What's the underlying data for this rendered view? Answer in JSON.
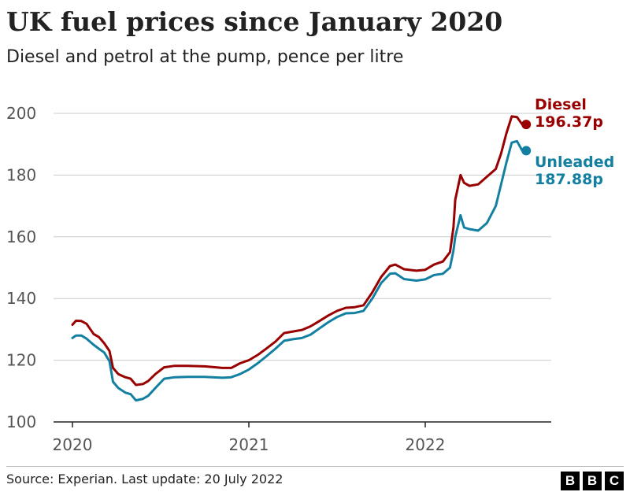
{
  "brand": {
    "letters": [
      "B",
      "B",
      "C"
    ]
  },
  "source": "Source: Experian. Last update: 20 July 2022",
  "colors": {
    "diesel": "#990000",
    "unleaded": "#1380A1",
    "grid": "#cccccc",
    "text": "#222222"
  },
  "chart_data": {
    "type": "line",
    "title": "UK fuel prices since January 2020",
    "subtitle": "Diesel and petrol at the pump, pence per litre",
    "xlabel": "",
    "ylabel": "",
    "xlim": [
      2020.0,
      2022.67
    ],
    "ylim": [
      100,
      200
    ],
    "yticks": [
      100,
      120,
      140,
      160,
      180,
      200
    ],
    "ytick_labels": [
      "100",
      "120",
      "140",
      "160",
      "180",
      "200"
    ],
    "xticks": [
      2020,
      2021,
      2022
    ],
    "xtick_labels": [
      "2020",
      "2021",
      "2022"
    ],
    "series": [
      {
        "name": "Diesel",
        "end_label": "196.37p",
        "color": "#990000",
        "points": [
          [
            2020.0,
            131.5
          ],
          [
            2020.02,
            132.8
          ],
          [
            2020.05,
            132.7
          ],
          [
            2020.08,
            131.8
          ],
          [
            2020.12,
            128.5
          ],
          [
            2020.15,
            127.5
          ],
          [
            2020.18,
            125.5
          ],
          [
            2020.21,
            123.0
          ],
          [
            2020.23,
            117.5
          ],
          [
            2020.26,
            115.5
          ],
          [
            2020.3,
            114.5
          ],
          [
            2020.33,
            114.0
          ],
          [
            2020.36,
            112.0
          ],
          [
            2020.4,
            112.3
          ],
          [
            2020.43,
            113.3
          ],
          [
            2020.47,
            115.5
          ],
          [
            2020.52,
            117.7
          ],
          [
            2020.58,
            118.2
          ],
          [
            2020.65,
            118.2
          ],
          [
            2020.75,
            118.0
          ],
          [
            2020.85,
            117.5
          ],
          [
            2020.9,
            117.5
          ],
          [
            2020.95,
            119.0
          ],
          [
            2021.0,
            120.0
          ],
          [
            2021.05,
            121.7
          ],
          [
            2021.1,
            123.8
          ],
          [
            2021.15,
            126.0
          ],
          [
            2021.2,
            128.8
          ],
          [
            2021.25,
            129.3
          ],
          [
            2021.3,
            129.8
          ],
          [
            2021.35,
            131.0
          ],
          [
            2021.4,
            132.7
          ],
          [
            2021.45,
            134.5
          ],
          [
            2021.5,
            136.0
          ],
          [
            2021.55,
            137.0
          ],
          [
            2021.6,
            137.2
          ],
          [
            2021.65,
            137.8
          ],
          [
            2021.7,
            142.0
          ],
          [
            2021.75,
            147.0
          ],
          [
            2021.8,
            150.5
          ],
          [
            2021.83,
            151.0
          ],
          [
            2021.88,
            149.5
          ],
          [
            2021.95,
            149.0
          ],
          [
            2022.0,
            149.3
          ],
          [
            2022.05,
            151.0
          ],
          [
            2022.1,
            152.0
          ],
          [
            2022.14,
            155.0
          ],
          [
            2022.16,
            163.0
          ],
          [
            2022.17,
            172.0
          ],
          [
            2022.2,
            180.0
          ],
          [
            2022.22,
            177.5
          ],
          [
            2022.25,
            176.5
          ],
          [
            2022.3,
            177.0
          ],
          [
            2022.35,
            179.5
          ],
          [
            2022.4,
            182.0
          ],
          [
            2022.43,
            187.0
          ],
          [
            2022.46,
            193.5
          ],
          [
            2022.49,
            199.0
          ],
          [
            2022.52,
            198.8
          ],
          [
            2022.55,
            196.4
          ]
        ]
      },
      {
        "name": "Unleaded",
        "end_label": "187.88p",
        "color": "#1380A1",
        "points": [
          [
            2020.0,
            127.2
          ],
          [
            2020.02,
            128.0
          ],
          [
            2020.05,
            128.0
          ],
          [
            2020.08,
            127.0
          ],
          [
            2020.12,
            125.0
          ],
          [
            2020.15,
            123.7
          ],
          [
            2020.18,
            122.5
          ],
          [
            2020.21,
            119.7
          ],
          [
            2020.23,
            113.0
          ],
          [
            2020.26,
            111.0
          ],
          [
            2020.3,
            109.5
          ],
          [
            2020.33,
            109.0
          ],
          [
            2020.36,
            107.0
          ],
          [
            2020.4,
            107.5
          ],
          [
            2020.43,
            108.5
          ],
          [
            2020.47,
            111.0
          ],
          [
            2020.52,
            114.0
          ],
          [
            2020.58,
            114.5
          ],
          [
            2020.65,
            114.6
          ],
          [
            2020.75,
            114.6
          ],
          [
            2020.85,
            114.3
          ],
          [
            2020.9,
            114.5
          ],
          [
            2020.95,
            115.5
          ],
          [
            2021.0,
            117.0
          ],
          [
            2021.05,
            119.0
          ],
          [
            2021.1,
            121.3
          ],
          [
            2021.15,
            123.7
          ],
          [
            2021.2,
            126.3
          ],
          [
            2021.25,
            126.8
          ],
          [
            2021.3,
            127.2
          ],
          [
            2021.35,
            128.3
          ],
          [
            2021.4,
            130.3
          ],
          [
            2021.45,
            132.3
          ],
          [
            2021.5,
            134.0
          ],
          [
            2021.55,
            135.2
          ],
          [
            2021.6,
            135.3
          ],
          [
            2021.65,
            136.0
          ],
          [
            2021.7,
            140.0
          ],
          [
            2021.75,
            145.0
          ],
          [
            2021.8,
            148.0
          ],
          [
            2021.83,
            148.2
          ],
          [
            2021.88,
            146.3
          ],
          [
            2021.95,
            145.8
          ],
          [
            2022.0,
            146.2
          ],
          [
            2022.05,
            147.6
          ],
          [
            2022.1,
            148.0
          ],
          [
            2022.14,
            150.0
          ],
          [
            2022.16,
            155.5
          ],
          [
            2022.17,
            160.0
          ],
          [
            2022.2,
            167.0
          ],
          [
            2022.22,
            163.0
          ],
          [
            2022.25,
            162.5
          ],
          [
            2022.3,
            162.0
          ],
          [
            2022.35,
            164.5
          ],
          [
            2022.4,
            170.0
          ],
          [
            2022.43,
            177.0
          ],
          [
            2022.46,
            184.0
          ],
          [
            2022.49,
            190.5
          ],
          [
            2022.52,
            191.0
          ],
          [
            2022.55,
            187.9
          ]
        ]
      }
    ]
  }
}
